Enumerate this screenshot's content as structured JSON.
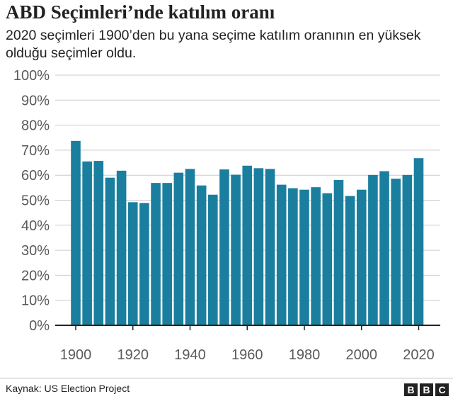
{
  "header": {
    "title": "ABD Seçimleri’nde katılım oranı",
    "subtitle": "2020 seçimleri 1900’den bu yana seçime katılım oranının en yüksek olduğu seçimler oldu."
  },
  "footer": {
    "source": "Kaynak: US Election Project",
    "logo_letters": [
      "B",
      "B",
      "C"
    ]
  },
  "colors": {
    "bar": "#1a7f9f",
    "grid": "#cccccc",
    "baseline": "#222222",
    "tick_text": "#5a5a5a"
  },
  "chart_data": {
    "type": "bar",
    "title": "ABD Seçimleri’nde katılım oranı",
    "subtitle": "2020 seçimleri 1900’den bu yana seçime katılım oranının en yüksek olduğu seçimler oldu.",
    "xlabel": "",
    "ylabel": "",
    "x": [
      1900,
      1904,
      1908,
      1912,
      1916,
      1920,
      1924,
      1928,
      1932,
      1936,
      1940,
      1944,
      1948,
      1952,
      1956,
      1960,
      1964,
      1968,
      1972,
      1976,
      1980,
      1984,
      1988,
      1992,
      1996,
      2000,
      2004,
      2008,
      2012,
      2016,
      2020
    ],
    "values": [
      73.7,
      65.5,
      65.7,
      59.0,
      61.8,
      49.2,
      48.9,
      56.9,
      56.9,
      61.0,
      62.5,
      55.9,
      52.2,
      62.3,
      60.2,
      63.8,
      62.8,
      62.5,
      56.2,
      54.8,
      54.2,
      55.2,
      52.8,
      58.1,
      51.7,
      54.2,
      60.1,
      61.6,
      58.6,
      60.1,
      66.8
    ],
    "ylim": [
      0,
      100
    ],
    "yticks": [
      0,
      10,
      20,
      30,
      40,
      50,
      60,
      70,
      80,
      90,
      100
    ],
    "ytick_labels": [
      "0%",
      "10%",
      "20%",
      "30%",
      "40%",
      "50%",
      "60%",
      "70%",
      "80%",
      "90%",
      "100%"
    ],
    "xticks": [
      1900,
      1920,
      1940,
      1960,
      1980,
      2000,
      2020
    ],
    "xtick_labels": [
      "1900",
      "1920",
      "1940",
      "1960",
      "1980",
      "2000",
      "2020"
    ],
    "grid": true,
    "legend": "none"
  }
}
